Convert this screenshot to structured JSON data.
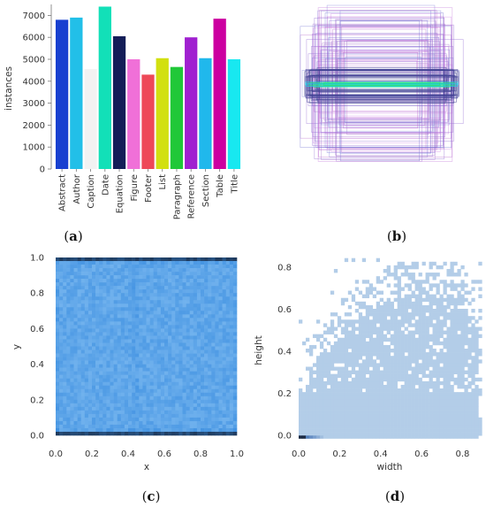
{
  "panel_labels": [
    "a",
    "b",
    "c",
    "d"
  ],
  "chart_data": [
    {
      "panel": "a",
      "type": "bar",
      "ylabel": "instances",
      "xlabel": "",
      "ylim": [
        0,
        7500
      ],
      "yticks": [
        0,
        1000,
        2000,
        3000,
        4000,
        5000,
        6000,
        7000
      ],
      "grid": false,
      "categories": [
        "Abstract",
        "Author",
        "Caption",
        "Date",
        "Equation",
        "Figure",
        "Footer",
        "List",
        "Paragraph",
        "Reference",
        "Section",
        "Table",
        "Title"
      ],
      "values": [
        6800,
        6900,
        4550,
        7400,
        6050,
        5000,
        4300,
        5050,
        4650,
        6000,
        5050,
        6850,
        5000
      ],
      "colors": [
        "#1840d0",
        "#22bfe8",
        "#f2f2f2",
        "#12e0b8",
        "#141e58",
        "#f070d8",
        "#ee4858",
        "#d2e010",
        "#20c838",
        "#a020d0",
        "#20b8ec",
        "#cc00a0",
        "#18e8f0"
      ]
    },
    {
      "panel": "b",
      "type": "other",
      "description_kind": "bounding-box overlay",
      "axes_visible": false
    },
    {
      "panel": "c",
      "type": "heatmap",
      "xlabel": "x",
      "ylabel": "y",
      "xlim": [
        0,
        1
      ],
      "ylim": [
        0,
        1
      ],
      "xticks": [
        0.0,
        0.2,
        0.4,
        0.6,
        0.8,
        1.0
      ],
      "yticks": [
        0.0,
        0.2,
        0.4,
        0.6,
        0.8,
        1.0
      ],
      "tick_format": "0.0",
      "colors": {
        "low": "#7ab8f0",
        "mid": "#3d8fe0",
        "high": "#1f3a5c"
      }
    },
    {
      "panel": "d",
      "type": "heatmap",
      "xlabel": "width",
      "ylabel": "height",
      "xlim": [
        0,
        0.88
      ],
      "ylim": [
        -0.02,
        0.85
      ],
      "xticks": [
        0.0,
        0.2,
        0.4,
        0.6,
        0.8
      ],
      "yticks": [
        0.0,
        0.2,
        0.4,
        0.6,
        0.8
      ],
      "tick_format": "0.0",
      "colors": {
        "fill": "#b3cde8",
        "dense": "#2c5fa8",
        "darkest": "#1b2a44"
      }
    }
  ]
}
